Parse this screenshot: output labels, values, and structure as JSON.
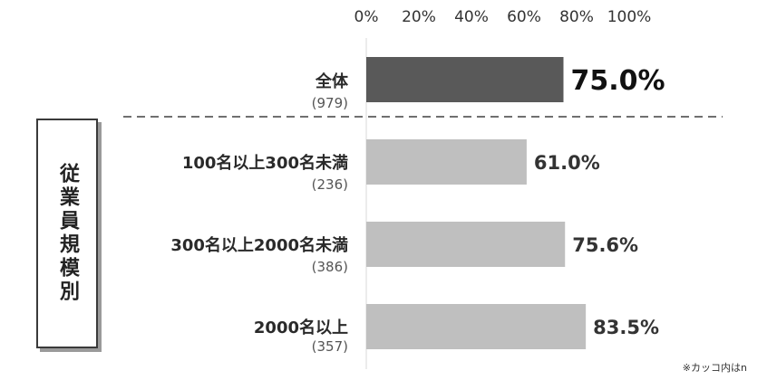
{
  "chart_data": {
    "type": "bar",
    "orientation": "horizontal",
    "xlim": [
      0,
      100
    ],
    "x_ticks": [
      "0%",
      "20%",
      "40%",
      "60%",
      "80%",
      "100%"
    ],
    "group_label": "従業員規模別",
    "categories": [
      {
        "label": "全体",
        "n": "(979)",
        "value": 75.0,
        "value_label": "75.0%",
        "highlight": true
      },
      {
        "label": "100名以上300名未満",
        "n": "(236)",
        "value": 61.0,
        "value_label": "61.0%",
        "highlight": false
      },
      {
        "label": "300名以上2000名未満",
        "n": "(386)",
        "value": 75.6,
        "value_label": "75.6%",
        "highlight": false
      },
      {
        "label": "2000名以上",
        "n": "(357)",
        "value": 83.5,
        "value_label": "83.5%",
        "highlight": false
      }
    ],
    "colors": {
      "highlight": "#595959",
      "bar": "#bfbfbf"
    },
    "note": "※カッコ内はn"
  }
}
